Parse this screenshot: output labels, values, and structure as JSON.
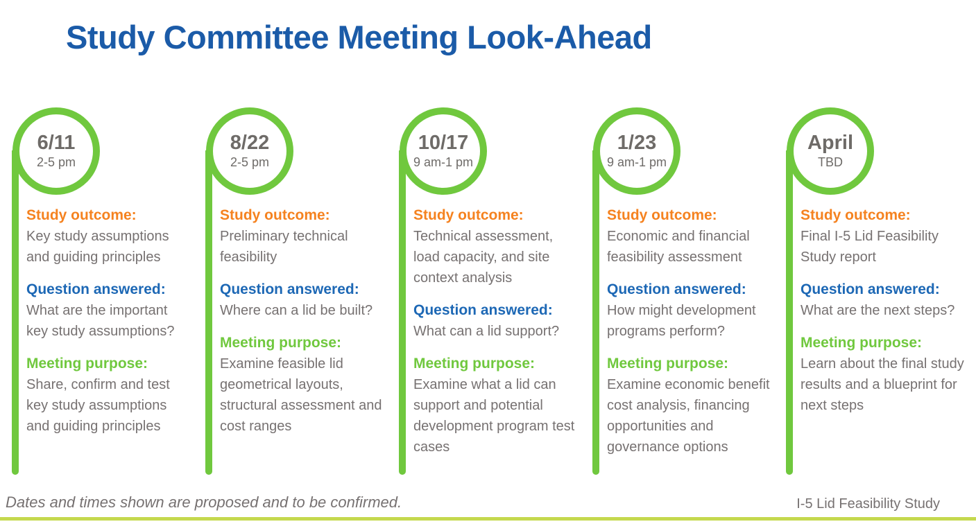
{
  "title": "Study Committee Meeting Look-Ahead",
  "labels": {
    "outcome": "Study outcome:",
    "question": "Question answered:",
    "purpose": "Meeting purpose:"
  },
  "columns": [
    {
      "date": "6/11",
      "time": "2-5 pm",
      "outcome": "Key study assumptions and guiding principles",
      "question": "What are the important key study assumptions?",
      "purpose": "Share, confirm and test key study assumptions and guiding principles"
    },
    {
      "date": "8/22",
      "time": "2-5 pm",
      "outcome": "Preliminary technical feasibility",
      "question": "Where can a lid be built?",
      "purpose": "Examine feasible lid geometrical layouts, structural assessment and cost ranges"
    },
    {
      "date": "10/17",
      "time": "9 am-1 pm",
      "outcome": "Technical assessment, load capacity, and site context analysis",
      "question": "What can a lid support?",
      "purpose": "Examine what a lid can support and potential development program test cases"
    },
    {
      "date": "1/23",
      "time": "9 am-1 pm",
      "outcome": "Economic and financial feasibility assessment",
      "question": "How might development programs perform?",
      "purpose": "Examine economic benefit cost analysis, financing opportunities and governance options"
    },
    {
      "date": "April",
      "time": "TBD",
      "outcome": "Final I-5 Lid Feasibility Study report",
      "question": "What are the next steps?",
      "purpose": "Learn about the final study results and a blueprint for next steps"
    }
  ],
  "footer": {
    "note": "Dates and times shown are proposed and to be confirmed.",
    "brand": "I-5 Lid Feasibility Study"
  },
  "colors": {
    "title_blue": "#1b5ba8",
    "outcome_orange": "#f5821f",
    "question_blue": "#1d68b5",
    "accent_green": "#70c83e",
    "bottom_bar_green": "#c5d94e",
    "body_gray": "#767171",
    "date_gray": "#6e6b68"
  }
}
